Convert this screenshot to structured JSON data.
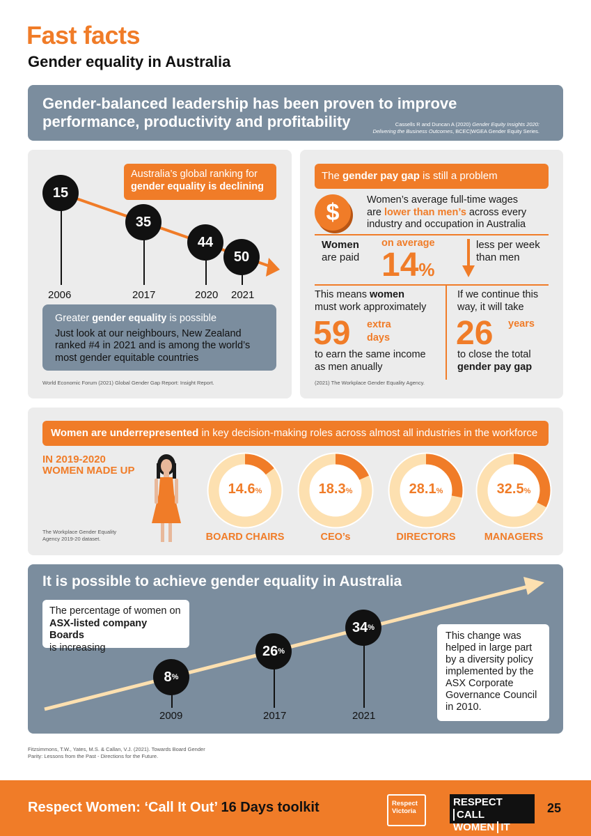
{
  "header": {
    "title": "Fast facts",
    "subtitle": "Gender equality in Australia"
  },
  "banner": {
    "text": "Gender-balanced leadership has been proven to improve performance, productivity and profitability",
    "source_line1_prefix": "Cassells R and Duncan A (2020) ",
    "source_line1_italic": "Gender Equity Insights 2020:",
    "source_line2_italic": "Delivering the Business Outcomes",
    "source_line2_suffix": ", BCEC|WGEA Gender Equity Series."
  },
  "ranking": {
    "box_line1": "Australia’s global ranking for",
    "box_line2": "gender equality is declining",
    "points": [
      {
        "year": "2006",
        "rank": "15"
      },
      {
        "year": "2017",
        "rank": "35"
      },
      {
        "year": "2020",
        "rank": "44"
      },
      {
        "year": "2021",
        "rank": "50"
      }
    ],
    "possible_prefix": "Greater ",
    "possible_bold": "gender equality",
    "possible_suffix": " is possible",
    "possible_body": "Just look at our neighbours, New Zealand ranked #4 in 2021 and is among the world’s most gender equitable countries",
    "source": "World Economic Forum (2021) Global Gender Gap Report: Insight Report."
  },
  "paygap": {
    "box_prefix": "The ",
    "box_bold": "gender pay gap",
    "box_suffix": " is still a problem",
    "dollar": "$",
    "wages_line1": "Women’s average full-time wages",
    "wages_line2_prefix": "are ",
    "wages_line2_orange": "lower than men’s",
    "wages_line2_suffix": " across every",
    "wages_line3": "industry and occupation in Australia",
    "women_bold": "Women",
    "are_paid": "are paid",
    "on_average": "on average",
    "percent_value": "14",
    "percent_sign": "%",
    "less_per_week": "less per week",
    "than_men": "than men",
    "means_prefix": "This means ",
    "means_bold": "women",
    "means_line2": "must work approximately",
    "days_value": "59",
    "extra": "extra",
    "days": "days",
    "earn_line1": "to earn the same income",
    "earn_line2": "as men anually",
    "continue_line1": "If we continue this",
    "continue_line2": "way, it will take",
    "years_value": "26",
    "years": "years",
    "close_line1": "to close the total",
    "close_line2": "gender pay gap",
    "source": "(2021) The Workplace Gender Equality Agency."
  },
  "underrepresented": {
    "box_bold": "Women are underrepresented",
    "box_suffix": " in key decision-making roles across almost all industries in the workforce",
    "year_line1": "IN 2019-2020",
    "year_line2": "WOMEN MADE UP",
    "source": "The Workplace Gender Equality Agency 2019-20 dataset.",
    "roles": [
      {
        "value": "14.6",
        "fraction": 0.146,
        "label": "BOARD CHAIRS"
      },
      {
        "value": "18.3",
        "fraction": 0.183,
        "label": "CEO’s"
      },
      {
        "value": "28.1",
        "fraction": 0.281,
        "label": "DIRECTORS"
      },
      {
        "value": "32.5",
        "fraction": 0.325,
        "label": "MANAGERS"
      }
    ],
    "percent_sign": "%",
    "colors": {
      "ring": "#fde0b0",
      "arc": "#f07c28"
    }
  },
  "achieve": {
    "title": "It is possible to achieve gender equality in Australia",
    "asx_line1": "The percentage of women on",
    "asx_bold": "ASX-listed company Boards",
    "asx_line3": "is increasing",
    "points": [
      {
        "year": "2009",
        "value": "8",
        "sign": "%"
      },
      {
        "year": "2017",
        "value": "26",
        "sign": "%"
      },
      {
        "year": "2021",
        "value": "34",
        "sign": "%"
      }
    ],
    "policy": "This change was helped in large part by a diversity policy implemented by the ASX Corporate Governance Council in 2010.",
    "source": "Fitzsimmons, T.W., Yates, M.S. & Callan, V.J. (2021). Towards Board Gender Parity: Lessons from the Past - Directions for the Future."
  },
  "footer": {
    "text_white": "Respect Women: ‘Call It Out’",
    "text_dark": " 16 Days toolkit",
    "logo1_line1": "Respect",
    "logo1_line2": "Victoria",
    "logo2_line1a": "RESPECT",
    "logo2_line1b": "CALL",
    "logo2_line2a": "WOMEN",
    "logo2_line2b": "IT OUT",
    "page": "25"
  }
}
